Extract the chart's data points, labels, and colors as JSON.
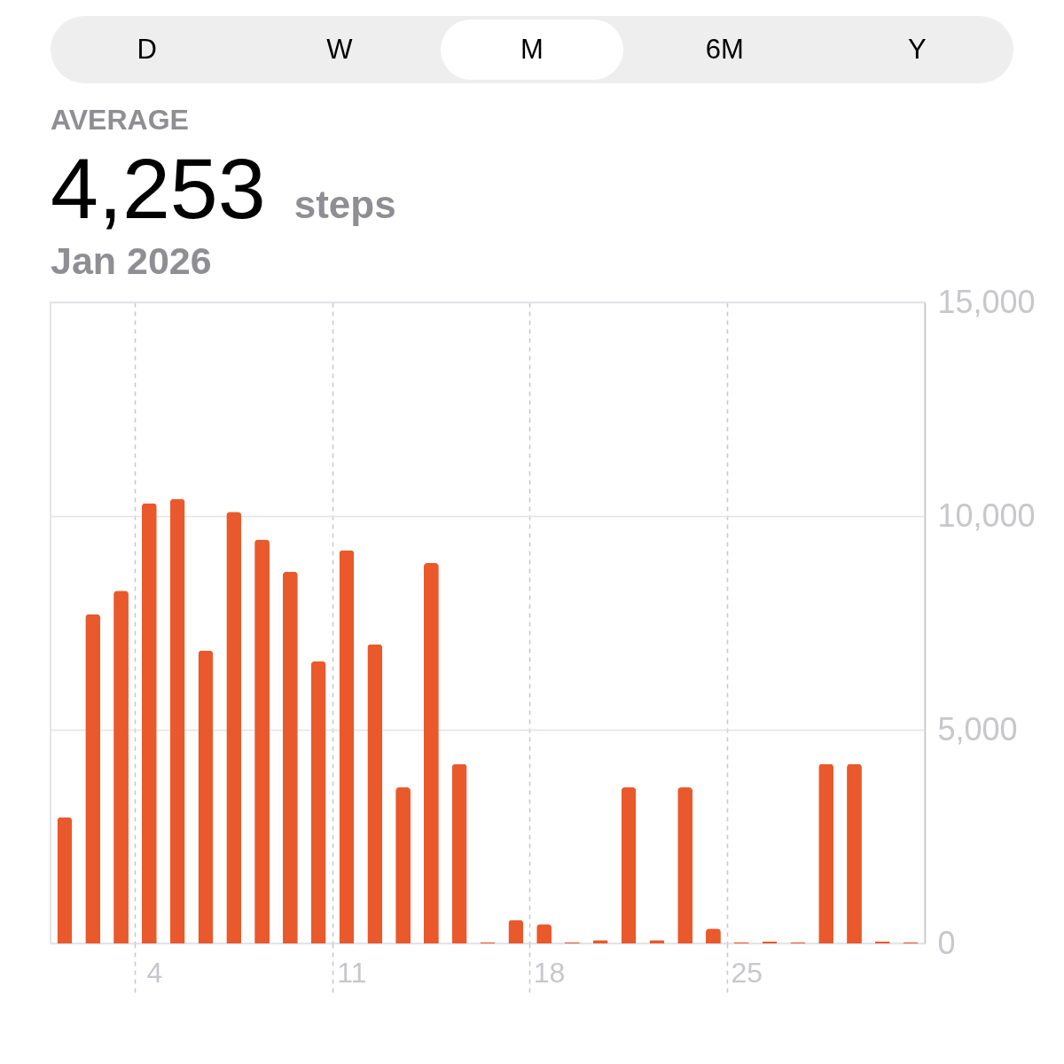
{
  "chart_data": {
    "type": "bar",
    "title": "4,253",
    "subtitle": "Jan 2026",
    "annotations": [
      "D",
      "W",
      "M",
      "6M",
      "Y",
      "AVERAGE",
      "steps"
    ],
    "categories": [
      null,
      null,
      null,
      "4",
      null,
      null,
      null,
      null,
      null,
      null,
      "11",
      null,
      null,
      null,
      null,
      null,
      null,
      "18",
      null,
      null,
      null,
      null,
      null,
      null,
      "25",
      null,
      null,
      null,
      null,
      null,
      null
    ],
    "values": [
      2950,
      7700,
      8250,
      10300,
      10400,
      6850,
      10100,
      9450,
      8700,
      6600,
      9200,
      7000,
      3650,
      8900,
      4200,
      30,
      550,
      450,
      30,
      80,
      3650,
      80,
      3650,
      350,
      30,
      40,
      30,
      4200,
      4200,
      40,
      30
    ],
    "color": "#e9592b",
    "ylim": [
      0,
      15000
    ],
    "yticks": [
      0,
      {
        "value": 5000,
        "label": "5,000"
      },
      {
        "value": 10000,
        "label": "10,000"
      },
      {
        "value": 15000,
        "label": "15,000"
      }
    ],
    "grid": true
  }
}
